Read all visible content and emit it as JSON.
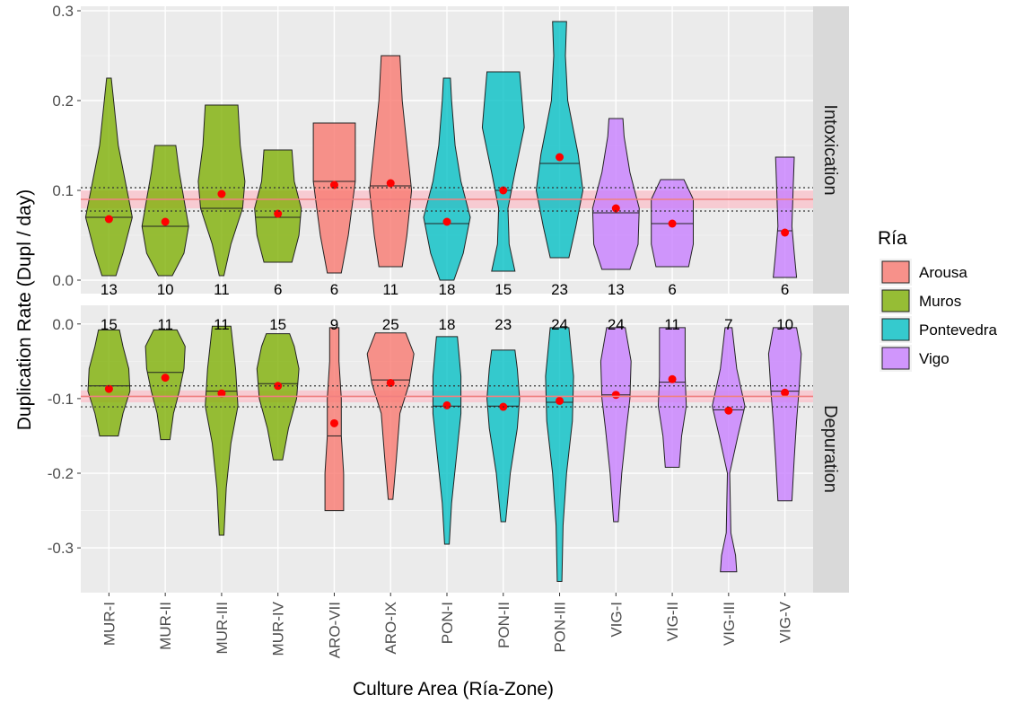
{
  "chart_data": {
    "type": "violin",
    "xlabel": "Culture Area (Ría-Zone)",
    "ylabel": "Duplication Rate (Dupl / day)",
    "categories": [
      "MUR-I",
      "MUR-II",
      "MUR-III",
      "MUR-IV",
      "ARO-VII",
      "ARO-IX",
      "PON-I",
      "PON-II",
      "PON-III",
      "VIG-I",
      "VIG-II",
      "VIG-III",
      "VIG-V"
    ],
    "category_ria": [
      "Muros",
      "Muros",
      "Muros",
      "Muros",
      "Arousa",
      "Arousa",
      "Pontevedra",
      "Pontevedra",
      "Pontevedra",
      "Vigo",
      "Vigo",
      "Vigo",
      "Vigo"
    ],
    "legend": {
      "title": "Ría",
      "position": "right",
      "entries": [
        {
          "label": "Arousa",
          "color": "#F8766D"
        },
        {
          "label": "Muros",
          "color": "#7CAE00"
        },
        {
          "label": "Pontevedra",
          "color": "#00BFC4"
        },
        {
          "label": "Vigo",
          "color": "#C77CFF"
        }
      ]
    },
    "grid": true,
    "panels": [
      {
        "strip": "Intoxication",
        "ylim": [
          -0.015,
          0.305
        ],
        "yticks": [
          0.0,
          0.1,
          0.2,
          0.3
        ],
        "ytick_labels": [
          "0.0",
          "0.1",
          "0.2",
          "0.3"
        ],
        "reference_line": 0.09,
        "reference_band": [
          0.08,
          0.1
        ],
        "reference_dotted": [
          0.077,
          0.103
        ],
        "count_label_y": -0.01,
        "violins": [
          {
            "n": 13,
            "min": 0.005,
            "max": 0.225,
            "median": 0.07,
            "mean": 0.068,
            "shape": [
              [
                0.005,
                0.3
              ],
              [
                0.03,
                0.6
              ],
              [
                0.07,
                1.0
              ],
              [
                0.11,
                0.7
              ],
              [
                0.15,
                0.4
              ],
              [
                0.2,
                0.2
              ],
              [
                0.225,
                0.1
              ]
            ]
          },
          {
            "n": 10,
            "min": 0.005,
            "max": 0.15,
            "median": 0.06,
            "mean": 0.065,
            "shape": [
              [
                0.005,
                0.3
              ],
              [
                0.03,
                0.8
              ],
              [
                0.06,
                1.0
              ],
              [
                0.09,
                0.8
              ],
              [
                0.12,
                0.6
              ],
              [
                0.15,
                0.45
              ]
            ]
          },
          {
            "n": 11,
            "min": 0.005,
            "max": 0.195,
            "median": 0.08,
            "mean": 0.096,
            "shape": [
              [
                0.005,
                0.1
              ],
              [
                0.04,
                0.4
              ],
              [
                0.08,
                0.9
              ],
              [
                0.11,
                1.0
              ],
              [
                0.15,
                0.8
              ],
              [
                0.195,
                0.7
              ]
            ]
          },
          {
            "n": 6,
            "min": 0.02,
            "max": 0.145,
            "median": 0.07,
            "mean": 0.074,
            "shape": [
              [
                0.02,
                0.6
              ],
              [
                0.05,
                0.9
              ],
              [
                0.08,
                1.0
              ],
              [
                0.11,
                0.7
              ],
              [
                0.145,
                0.6
              ]
            ]
          },
          {
            "n": 6,
            "min": 0.008,
            "max": 0.175,
            "median": 0.11,
            "mean": 0.106,
            "shape": [
              [
                0.008,
                0.3
              ],
              [
                0.05,
                0.6
              ],
              [
                0.11,
                0.9
              ],
              [
                0.15,
                0.9
              ],
              [
                0.175,
                0.9
              ]
            ]
          },
          {
            "n": 11,
            "min": 0.015,
            "max": 0.25,
            "median": 0.105,
            "mean": 0.108,
            "shape": [
              [
                0.015,
                0.5
              ],
              [
                0.05,
                0.7
              ],
              [
                0.1,
                0.9
              ],
              [
                0.15,
                0.7
              ],
              [
                0.2,
                0.5
              ],
              [
                0.25,
                0.4
              ]
            ]
          },
          {
            "n": 18,
            "min": 0.0,
            "max": 0.225,
            "median": 0.063,
            "mean": 0.065,
            "shape": [
              [
                0.0,
                0.3
              ],
              [
                0.03,
                0.7
              ],
              [
                0.07,
                1.0
              ],
              [
                0.11,
                0.6
              ],
              [
                0.15,
                0.35
              ],
              [
                0.2,
                0.2
              ],
              [
                0.225,
                0.15
              ]
            ]
          },
          {
            "n": 15,
            "min": 0.01,
            "max": 0.232,
            "median": 0.1,
            "mean": 0.1,
            "shape": [
              [
                0.01,
                0.5
              ],
              [
                0.04,
                0.25
              ],
              [
                0.08,
                0.2
              ],
              [
                0.12,
                0.5
              ],
              [
                0.17,
                0.9
              ],
              [
                0.232,
                0.7
              ]
            ]
          },
          {
            "n": 23,
            "min": 0.025,
            "max": 0.288,
            "median": 0.13,
            "mean": 0.137,
            "shape": [
              [
                0.025,
                0.4
              ],
              [
                0.06,
                0.7
              ],
              [
                0.1,
                1.0
              ],
              [
                0.14,
                0.8
              ],
              [
                0.2,
                0.35
              ],
              [
                0.25,
                0.25
              ],
              [
                0.288,
                0.3
              ]
            ]
          },
          {
            "n": 13,
            "min": 0.012,
            "max": 0.18,
            "median": 0.075,
            "mean": 0.08,
            "shape": [
              [
                0.012,
                0.6
              ],
              [
                0.04,
                0.95
              ],
              [
                0.08,
                1.0
              ],
              [
                0.12,
                0.6
              ],
              [
                0.16,
                0.35
              ],
              [
                0.18,
                0.3
              ]
            ]
          },
          {
            "n": 6,
            "min": 0.015,
            "max": 0.112,
            "median": 0.063,
            "mean": 0.063,
            "shape": [
              [
                0.015,
                0.7
              ],
              [
                0.04,
                0.9
              ],
              [
                0.07,
                0.9
              ],
              [
                0.09,
                0.9
              ],
              [
                0.112,
                0.5
              ]
            ]
          },
          {
            "n": 6,
            "min": 0.003,
            "max": 0.137,
            "median": 0.055,
            "mean": 0.053,
            "shape": [
              [
                0.003,
                0.5
              ],
              [
                0.03,
                0.4
              ],
              [
                0.06,
                0.3
              ],
              [
                0.1,
                0.35
              ],
              [
                0.137,
                0.4
              ]
            ]
          }
        ],
        "violin_positions": [
          0,
          1,
          2,
          3,
          4,
          5,
          6,
          7,
          8,
          9,
          10,
          12
        ]
      },
      {
        "strip": "Depuration",
        "ylim": [
          -0.36,
          0.025
        ],
        "yticks": [
          -0.3,
          -0.2,
          -0.1,
          0.0
        ],
        "ytick_labels": [
          "-0.3",
          "-0.2",
          "-0.1",
          "0.0"
        ],
        "reference_line": -0.097,
        "reference_band": [
          -0.105,
          -0.089
        ],
        "reference_dotted": [
          -0.111,
          -0.083
        ],
        "count_label_y": 0.0,
        "violins": [
          {
            "n": 15,
            "min": -0.15,
            "max": -0.008,
            "median": -0.083,
            "mean": -0.087,
            "shape": [
              [
                -0.15,
                0.4
              ],
              [
                -0.12,
                0.6
              ],
              [
                -0.09,
                0.9
              ],
              [
                -0.06,
                0.85
              ],
              [
                -0.03,
                0.6
              ],
              [
                -0.008,
                0.45
              ]
            ]
          },
          {
            "n": 11,
            "min": -0.155,
            "max": -0.008,
            "median": -0.065,
            "mean": -0.072,
            "shape": [
              [
                -0.155,
                0.2
              ],
              [
                -0.12,
                0.35
              ],
              [
                -0.09,
                0.6
              ],
              [
                -0.06,
                0.8
              ],
              [
                -0.03,
                0.85
              ],
              [
                -0.008,
                0.5
              ]
            ]
          },
          {
            "n": 11,
            "min": -0.283,
            "max": -0.003,
            "median": -0.09,
            "mean": -0.093,
            "shape": [
              [
                -0.283,
                0.1
              ],
              [
                -0.22,
                0.2
              ],
              [
                -0.16,
                0.4
              ],
              [
                -0.11,
                0.7
              ],
              [
                -0.06,
                0.6
              ],
              [
                -0.003,
                0.4
              ]
            ]
          },
          {
            "n": 15,
            "min": -0.182,
            "max": -0.013,
            "median": -0.08,
            "mean": -0.083,
            "shape": [
              [
                -0.182,
                0.2
              ],
              [
                -0.14,
                0.45
              ],
              [
                -0.1,
                0.8
              ],
              [
                -0.06,
                0.9
              ],
              [
                -0.03,
                0.7
              ],
              [
                -0.013,
                0.5
              ]
            ]
          },
          {
            "n": 9,
            "min": -0.25,
            "max": -0.005,
            "median": -0.15,
            "mean": -0.133,
            "shape": [
              [
                -0.25,
                0.4
              ],
              [
                -0.2,
                0.4
              ],
              [
                -0.15,
                0.3
              ],
              [
                -0.1,
                0.3
              ],
              [
                -0.05,
                0.2
              ],
              [
                -0.005,
                0.2
              ]
            ]
          },
          {
            "n": 25,
            "min": -0.235,
            "max": -0.012,
            "median": -0.075,
            "mean": -0.079,
            "shape": [
              [
                -0.235,
                0.1
              ],
              [
                -0.18,
                0.25
              ],
              [
                -0.12,
                0.4
              ],
              [
                -0.08,
                0.8
              ],
              [
                -0.04,
                1.0
              ],
              [
                -0.012,
                0.65
              ]
            ]
          },
          {
            "n": 18,
            "min": -0.295,
            "max": -0.017,
            "median": -0.11,
            "mean": -0.109,
            "shape": [
              [
                -0.295,
                0.1
              ],
              [
                -0.24,
                0.2
              ],
              [
                -0.18,
                0.4
              ],
              [
                -0.12,
                0.6
              ],
              [
                -0.07,
                0.6
              ],
              [
                -0.017,
                0.45
              ]
            ]
          },
          {
            "n": 23,
            "min": -0.265,
            "max": -0.035,
            "median": -0.11,
            "mean": -0.111,
            "shape": [
              [
                -0.265,
                0.1
              ],
              [
                -0.2,
                0.3
              ],
              [
                -0.14,
                0.6
              ],
              [
                -0.1,
                0.7
              ],
              [
                -0.06,
                0.6
              ],
              [
                -0.035,
                0.5
              ]
            ]
          },
          {
            "n": 24,
            "min": -0.345,
            "max": -0.005,
            "median": -0.105,
            "mean": -0.103,
            "shape": [
              [
                -0.345,
                0.1
              ],
              [
                -0.27,
                0.15
              ],
              [
                -0.2,
                0.3
              ],
              [
                -0.13,
                0.55
              ],
              [
                -0.07,
                0.6
              ],
              [
                -0.005,
                0.4
              ]
            ]
          },
          {
            "n": 24,
            "min": -0.265,
            "max": -0.005,
            "median": -0.095,
            "mean": -0.095,
            "shape": [
              [
                -0.265,
                0.1
              ],
              [
                -0.2,
                0.25
              ],
              [
                -0.14,
                0.45
              ],
              [
                -0.1,
                0.6
              ],
              [
                -0.05,
                0.65
              ],
              [
                -0.005,
                0.4
              ]
            ]
          },
          {
            "n": 11,
            "min": -0.192,
            "max": -0.005,
            "median": -0.078,
            "mean": -0.074,
            "shape": [
              [
                -0.192,
                0.3
              ],
              [
                -0.15,
                0.4
              ],
              [
                -0.11,
                0.6
              ],
              [
                -0.07,
                0.55
              ],
              [
                -0.03,
                0.55
              ],
              [
                -0.005,
                0.55
              ]
            ]
          },
          {
            "n": 7,
            "min": -0.332,
            "max": -0.005,
            "median": -0.115,
            "mean": -0.116,
            "shape": [
              [
                -0.332,
                0.35
              ],
              [
                -0.31,
                0.3
              ],
              [
                -0.28,
                0.1
              ],
              [
                -0.2,
                0.05
              ],
              [
                -0.15,
                0.4
              ],
              [
                -0.11,
                0.7
              ],
              [
                -0.06,
                0.35
              ],
              [
                -0.005,
                0.15
              ]
            ]
          },
          {
            "n": 10,
            "min": -0.237,
            "max": -0.005,
            "median": -0.09,
            "mean": -0.092,
            "shape": [
              [
                -0.237,
                0.3
              ],
              [
                -0.18,
                0.4
              ],
              [
                -0.13,
                0.5
              ],
              [
                -0.09,
                0.6
              ],
              [
                -0.04,
                0.7
              ],
              [
                -0.005,
                0.5
              ]
            ]
          }
        ],
        "violin_positions": [
          0,
          1,
          2,
          3,
          4,
          5,
          6,
          7,
          8,
          9,
          10,
          11,
          12
        ]
      }
    ]
  }
}
